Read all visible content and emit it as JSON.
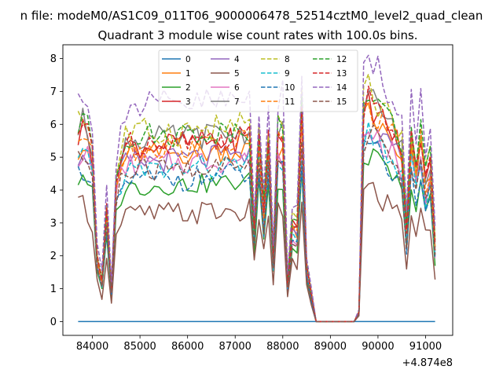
{
  "chart_data": {
    "type": "line",
    "suptitle": "n file: modeM0/AS1C09_011T06_9000006478_52514cztM0_level2_quad_clean",
    "title": "Quadrant 3 module wise count rates with 100.0s bins.",
    "xlabel": "",
    "ylabel": "",
    "x_offset_label": "+4.874e8",
    "xlim": [
      83380,
      91570
    ],
    "ylim": [
      -0.42,
      8.42
    ],
    "xticks": [
      84000,
      85000,
      86000,
      87000,
      88000,
      89000,
      90000,
      91000
    ],
    "xtick_labels": [
      "84000",
      "85000",
      "86000",
      "87000",
      "88000",
      "89000",
      "90000",
      "91000"
    ],
    "yticks": [
      0,
      1,
      2,
      3,
      4,
      5,
      6,
      7,
      8
    ],
    "ytick_labels": [
      "0",
      "1",
      "2",
      "3",
      "4",
      "5",
      "6",
      "7",
      "8"
    ],
    "legend": {
      "position": "top-center",
      "columns": 4
    },
    "x_start": 83700,
    "x_step": 100,
    "gap_range": [
      88700,
      89500
    ],
    "series": [
      {
        "name": "0",
        "color": "#1f77b4",
        "dash": "solid",
        "base": 0,
        "amp": 0
      },
      {
        "name": "1",
        "color": "#ff7f0e",
        "dash": "solid",
        "base": 5.3,
        "amp": 0.25
      },
      {
        "name": "2",
        "color": "#2ca02c",
        "dash": "solid",
        "base": 4.3,
        "amp": 0.2
      },
      {
        "name": "3",
        "color": "#d62728",
        "dash": "solid",
        "base": 5.6,
        "amp": 0.25
      },
      {
        "name": "4",
        "color": "#9467bd",
        "dash": "solid",
        "base": 5.1,
        "amp": 0.25
      },
      {
        "name": "5",
        "color": "#8c564b",
        "dash": "solid",
        "base": 3.4,
        "amp": 0.25
      },
      {
        "name": "6",
        "color": "#e377c2",
        "dash": "solid",
        "base": 5.0,
        "amp": 0.25
      },
      {
        "name": "7",
        "color": "#7f7f7f",
        "dash": "solid",
        "base": 5.8,
        "amp": 0.25
      },
      {
        "name": "8",
        "color": "#bcbd22",
        "dash": "dashed",
        "base": 6.0,
        "amp": 0.3
      },
      {
        "name": "9",
        "color": "#17becf",
        "dash": "dashed",
        "base": 4.8,
        "amp": 0.25
      },
      {
        "name": "10",
        "color": "#1f77b4",
        "dash": "dashed",
        "base": 4.5,
        "amp": 0.25
      },
      {
        "name": "11",
        "color": "#ff7f0e",
        "dash": "dashed",
        "base": 5.5,
        "amp": 0.25
      },
      {
        "name": "12",
        "color": "#2ca02c",
        "dash": "dashed",
        "base": 5.9,
        "amp": 0.25
      },
      {
        "name": "13",
        "color": "#d62728",
        "dash": "dashed",
        "base": 5.7,
        "amp": 0.25
      },
      {
        "name": "14",
        "color": "#9467bd",
        "dash": "dashed",
        "base": 6.8,
        "amp": 0.35
      },
      {
        "name": "15",
        "color": "#8c564b",
        "dash": "dashed",
        "base": 4.8,
        "amp": 0.25
      }
    ],
    "shape_profile": [
      [
        83700,
        1.0
      ],
      [
        83800,
        1.05
      ],
      [
        83900,
        1.0
      ],
      [
        84000,
        0.9
      ],
      [
        84100,
        0.35
      ],
      [
        84200,
        0.22
      ],
      [
        84250,
        0.9
      ],
      [
        84300,
        0.6
      ],
      [
        84400,
        0.18
      ],
      [
        84500,
        0.75
      ],
      [
        84600,
        0.88
      ],
      [
        84700,
        0.95
      ],
      [
        88000,
        1.0
      ],
      [
        88100,
        0.2
      ],
      [
        88200,
        1.05
      ],
      [
        88300,
        0.5
      ],
      [
        88400,
        1.1
      ],
      [
        88500,
        0.3
      ],
      [
        88600,
        0.15
      ],
      [
        88700,
        0.0
      ],
      [
        89500,
        0.0
      ],
      [
        89600,
        0.05
      ],
      [
        89700,
        1.08
      ],
      [
        89800,
        1.12
      ],
      [
        90500,
        0.9
      ],
      [
        90600,
        0.5
      ],
      [
        90700,
        1.0
      ],
      [
        90800,
        0.8
      ],
      [
        90900,
        1.0
      ],
      [
        91000,
        0.75
      ],
      [
        91100,
        0.85
      ],
      [
        91200,
        0.4
      ]
    ],
    "dips": [
      [
        87400,
        0.5
      ],
      [
        87600,
        0.6
      ],
      [
        87800,
        0.35
      ],
      [
        88200,
        0.5
      ]
    ]
  }
}
